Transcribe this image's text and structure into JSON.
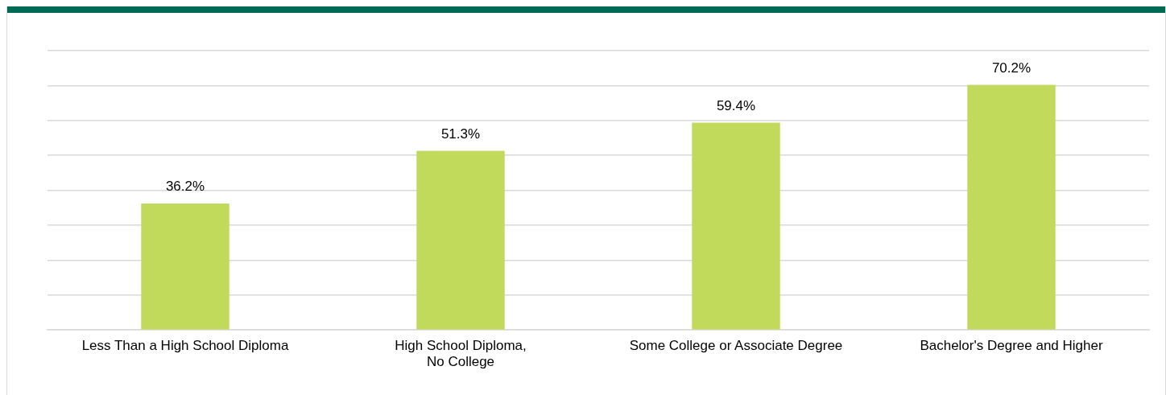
{
  "chart_data": {
    "type": "bar",
    "categories": [
      "Less Than a High School Diploma",
      "High School Diploma,\nNo College",
      "Some College or Associate Degree",
      "Bachelor's Degree and Higher"
    ],
    "values": [
      36.2,
      51.3,
      59.4,
      70.2
    ],
    "value_labels": [
      "36.2%",
      "51.3%",
      "59.4%",
      "70.2%"
    ],
    "color": "#c2da5c",
    "ylim": [
      0,
      80
    ],
    "yticks": [
      {
        "value": 0,
        "label": null
      },
      {
        "value": 10,
        "label": null
      },
      {
        "value": 20,
        "label": null
      },
      {
        "value": 30,
        "label": null
      },
      {
        "value": 40,
        "label": null
      },
      {
        "value": 50,
        "label": null
      },
      {
        "value": 60,
        "label": null
      },
      {
        "value": 70,
        "label": null
      },
      {
        "value": 80,
        "label": null
      }
    ],
    "tick_labels": "x",
    "grid": "y",
    "legend": false
  }
}
